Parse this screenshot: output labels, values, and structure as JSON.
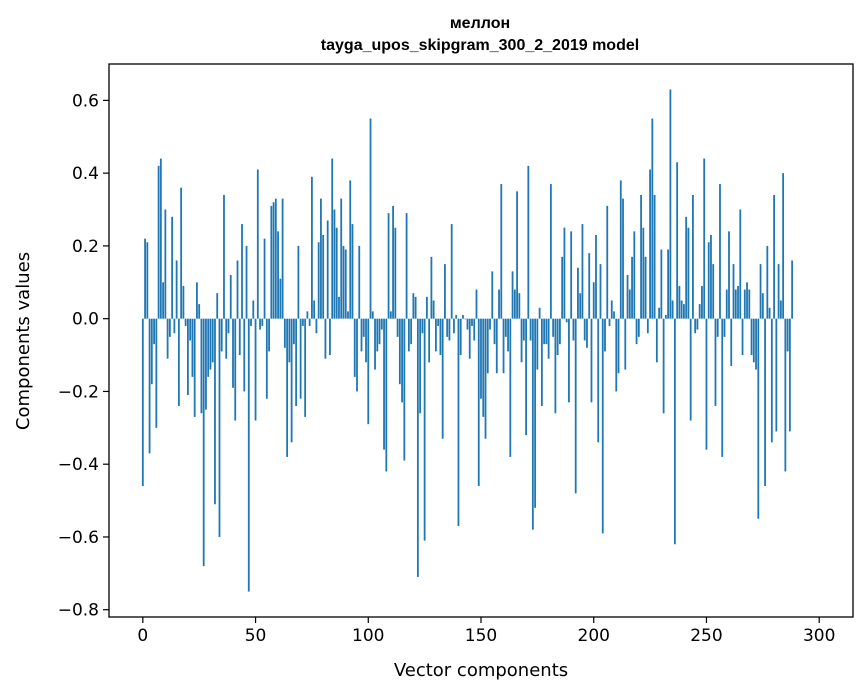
{
  "chart_data": {
    "type": "bar",
    "title_line1": "меллон",
    "title_line2": "tayga_upos_skipgram_300_2_2019 model",
    "xlabel": "Vector components",
    "ylabel": "Components values",
    "xlim": [
      -15,
      315
    ],
    "ylim": [
      -0.82,
      0.7
    ],
    "xticks": [
      0,
      50,
      100,
      150,
      200,
      250,
      300
    ],
    "xtick_labels": [
      "0",
      "50",
      "100",
      "150",
      "200",
      "250",
      "300"
    ],
    "yticks": [
      -0.8,
      -0.6,
      -0.4,
      -0.2,
      0.0,
      0.2,
      0.4,
      0.6
    ],
    "ytick_labels": [
      "−0.8",
      "−0.6",
      "−0.4",
      "−0.2",
      "0.0",
      "0.2",
      "0.4",
      "0.6"
    ],
    "bar_color": "#1f77b4",
    "values": [
      -0.46,
      0.22,
      0.21,
      -0.37,
      -0.18,
      -0.07,
      -0.3,
      0.42,
      0.44,
      0.1,
      0.3,
      -0.11,
      -0.05,
      0.28,
      -0.04,
      0.16,
      -0.24,
      0.36,
      0.09,
      -0.02,
      -0.21,
      -0.06,
      -0.16,
      -0.27,
      0.1,
      0.04,
      -0.26,
      -0.68,
      -0.25,
      -0.16,
      -0.14,
      -0.12,
      -0.51,
      0.07,
      -0.6,
      -0.09,
      0.34,
      -0.11,
      -0.04,
      0.12,
      -0.19,
      -0.28,
      0.16,
      -0.1,
      0.26,
      -0.2,
      0.2,
      -0.75,
      -0.02,
      0.05,
      -0.28,
      0.41,
      -0.03,
      -0.02,
      0.22,
      -0.22,
      -0.09,
      0.31,
      0.32,
      0.33,
      0.24,
      0.11,
      0.33,
      -0.08,
      -0.38,
      -0.12,
      -0.34,
      -0.07,
      -0.24,
      0.2,
      -0.22,
      -0.02,
      -0.27,
      0.02,
      -0.02,
      0.39,
      0.05,
      -0.04,
      0.21,
      0.33,
      0.23,
      -0.11,
      0.27,
      -0.1,
      0.44,
      0.3,
      0.25,
      0.06,
      0.33,
      0.2,
      0.19,
      0.02,
      0.38,
      0.26,
      -0.16,
      -0.2,
      0.2,
      -0.09,
      -0.05,
      -0.12,
      -0.29,
      0.55,
      0.02,
      -0.14,
      -0.09,
      -0.07,
      -0.03,
      -0.36,
      -0.42,
      0.29,
      0.02,
      0.31,
      0.25,
      -0.05,
      -0.18,
      -0.23,
      -0.39,
      0.29,
      -0.09,
      -0.07,
      0.07,
      0.06,
      -0.71,
      -0.26,
      -0.04,
      -0.61,
      0.06,
      -0.12,
      0.17,
      0.05,
      -0.09,
      -0.02,
      -0.1,
      -0.33,
      0.15,
      -0.05,
      -0.06,
      0.26,
      -0.04,
      0.01,
      -0.57,
      -0.1,
      0.01,
      0.0,
      -0.03,
      -0.11,
      -0.02,
      -0.06,
      0.08,
      -0.46,
      -0.22,
      -0.27,
      -0.33,
      -0.15,
      -0.03,
      0.13,
      -0.07,
      -0.15,
      0.08,
      0.37,
      -0.15,
      -0.05,
      -0.09,
      -0.38,
      0.13,
      0.08,
      0.35,
      0.07,
      -0.12,
      -0.06,
      -0.32,
      0.42,
      -0.06,
      -0.58,
      -0.52,
      -0.14,
      0.03,
      -0.24,
      -0.07,
      -0.07,
      -0.11,
      0.37,
      -0.05,
      -0.26,
      -0.1,
      -0.07,
      0.17,
      0.25,
      -0.01,
      -0.23,
      0.24,
      -0.06,
      -0.48,
      0.14,
      0.07,
      0.26,
      -0.06,
      -0.08,
      0.18,
      -0.23,
      0.1,
      0.23,
      -0.34,
      0.15,
      -0.59,
      -0.09,
      0.31,
      -0.02,
      0.05,
      0.02,
      -0.2,
      -0.15,
      0.38,
      0.33,
      -0.14,
      0.12,
      0.08,
      0.17,
      0.24,
      -0.07,
      -0.05,
      0.34,
      0.25,
      0.17,
      -0.04,
      0.41,
      0.55,
      0.34,
      -0.12,
      0.03,
      0.19,
      -0.26,
      0.01,
      0.19,
      0.63,
      0.05,
      -0.62,
      0.43,
      0.09,
      0.05,
      0.04,
      0.28,
      0.25,
      -0.28,
      0.34,
      -0.04,
      -0.03,
      0.04,
      0.09,
      0.44,
      -0.36,
      0.21,
      0.23,
      0.15,
      -0.24,
      -0.05,
      0.37,
      -0.38,
      -0.05,
      0.08,
      0.24,
      -0.13,
      0.15,
      0.08,
      0.09,
      0.3,
      -0.1,
      0.08,
      0.1,
      0.08,
      -0.1,
      -0.12,
      -0.14,
      -0.55,
      0.15,
      0.07,
      -0.46,
      0.2,
      0.03,
      -0.34,
      0.34,
      -0.31,
      0.15,
      0.05,
      0.4,
      -0.42,
      -0.09,
      -0.31,
      0.16
    ]
  }
}
